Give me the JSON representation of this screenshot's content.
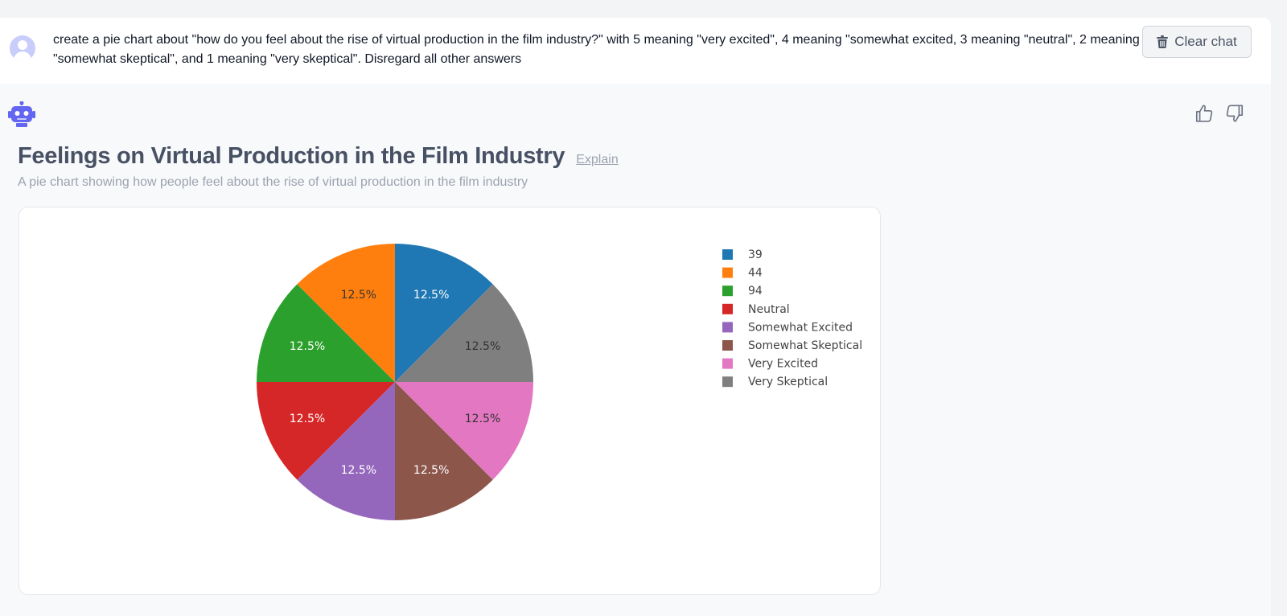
{
  "user_message": {
    "text": "create a pie chart about \"how do you feel about the rise of virtual production in the film industry?\" with 5 meaning \"very excited\", 4 meaning \"somewhat excited, 3 meaning \"neutral\", 2 meaning \"somewhat skeptical\", and 1 meaning \"very skeptical\". Disregard all other answers"
  },
  "toolbar": {
    "clear_label": "Clear chat"
  },
  "icons": {
    "user": "user-avatar-icon",
    "bot": "robot-icon",
    "trash": "trash-icon",
    "like": "thumbs-up-icon",
    "dislike": "thumbs-down-icon"
  },
  "response": {
    "explain_label": "Explain"
  },
  "chart_data": {
    "type": "pie",
    "title": "Feelings on Virtual Production in the Film Industry",
    "subtitle": "A pie chart showing how people feel about the rise of virtual production in the film industry",
    "labels": [
      "39",
      "44",
      "94",
      "Neutral",
      "Somewhat Excited",
      "Somewhat Skeptical",
      "Very Excited",
      "Very Skeptical"
    ],
    "values": [
      1,
      1,
      1,
      1,
      1,
      1,
      1,
      1
    ],
    "slice_text": [
      "12.5%",
      "12.5%",
      "12.5%",
      "12.5%",
      "12.5%",
      "12.5%",
      "12.5%",
      "12.5%"
    ],
    "slice_order": [
      "39",
      "Very Skeptical",
      "Very Excited",
      "Somewhat Skeptical",
      "Somewhat Excited",
      "Neutral",
      "94",
      "44"
    ],
    "colors": {
      "39": "#1f77b4",
      "44": "#ff7f0e",
      "94": "#2ca02c",
      "Neutral": "#d62728",
      "Somewhat Excited": "#9467bd",
      "Somewhat Skeptical": "#8c564b",
      "Very Excited": "#e377c2",
      "Very Skeptical": "#7f7f7f"
    },
    "dark_text_labels": [
      "44",
      "Very Skeptical",
      "Very Excited"
    ],
    "legend_position": "right",
    "direction": "clockwise",
    "start": "top"
  }
}
